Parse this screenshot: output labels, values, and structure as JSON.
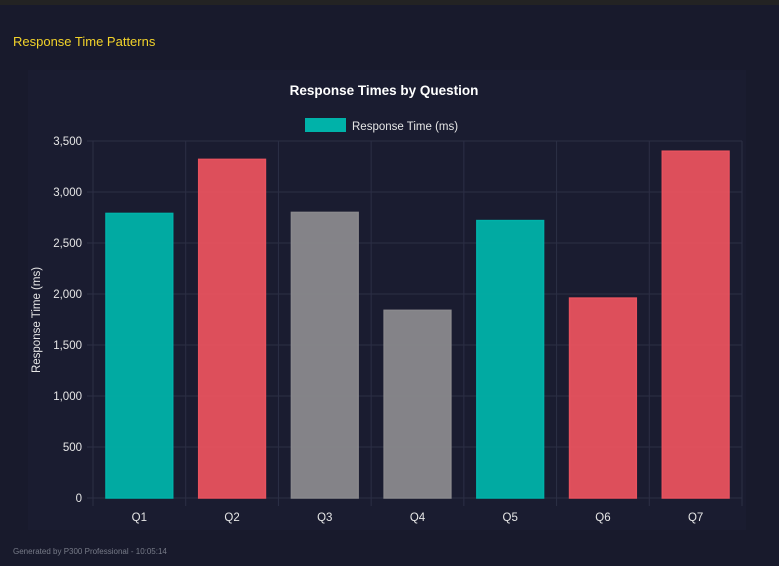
{
  "section_title": "Response Time Patterns",
  "footer": "Generated by P300 Professional - 10:05:14",
  "chart_data": {
    "type": "bar",
    "title": "Response Times by Question",
    "legend": {
      "label": "Response Time (ms)",
      "color": "#00b2a9",
      "placement": "top"
    },
    "ylabel": "Response Time (ms)",
    "xlabel": "",
    "ylim": [
      0,
      3500
    ],
    "yticks": [
      "0",
      "500",
      "1,000",
      "1,500",
      "2,000",
      "2,500",
      "3,000",
      "3,500"
    ],
    "grid": true,
    "categories": [
      "Q1",
      "Q2",
      "Q3",
      "Q4",
      "Q5",
      "Q6",
      "Q7"
    ],
    "values": [
      2790,
      3320,
      2800,
      1840,
      2720,
      1960,
      3400
    ],
    "colors": [
      "#00b2a9",
      "#e8525e",
      "#8a898d",
      "#8a898d",
      "#00b2a9",
      "#e8525e",
      "#e8525e"
    ]
  }
}
